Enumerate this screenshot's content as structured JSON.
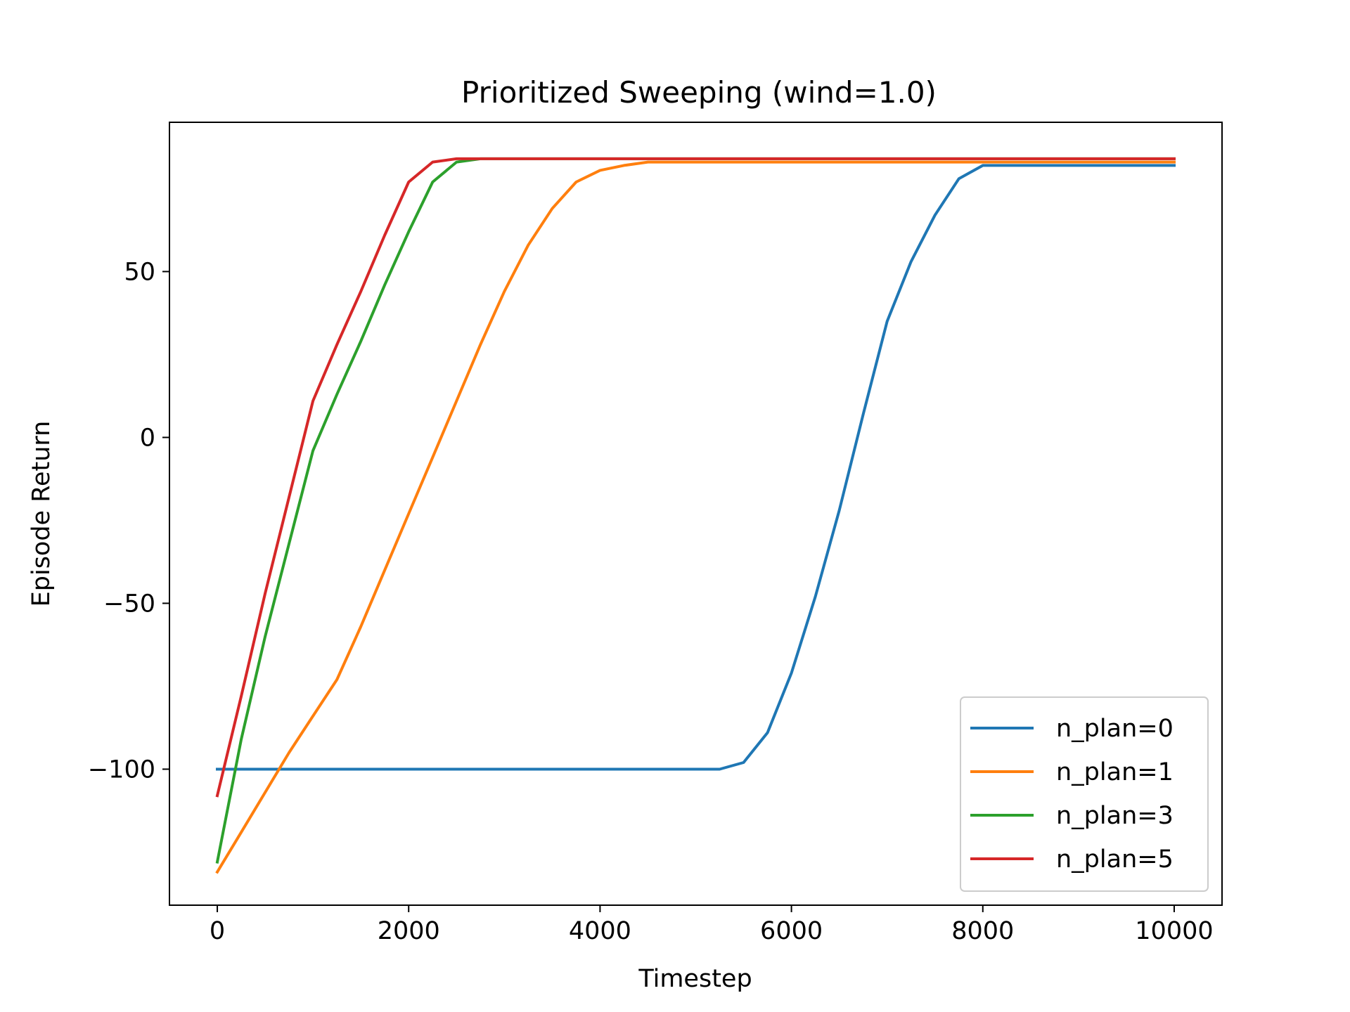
{
  "chart_data": {
    "type": "line",
    "title": "Prioritized Sweeping (wind=1.0)",
    "xlabel": "Timestep",
    "ylabel": "Episode Return",
    "xlim": [
      -500,
      10500
    ],
    "ylim": [
      -141,
      95
    ],
    "xticks": [
      0,
      2000,
      4000,
      6000,
      8000,
      10000
    ],
    "xtick_labels": [
      "0",
      "2000",
      "4000",
      "6000",
      "8000",
      "10000"
    ],
    "yticks": [
      -100,
      -50,
      0,
      50
    ],
    "ytick_labels": [
      "−100",
      "−50",
      "0",
      "50"
    ],
    "grid": false,
    "legend_position": "lower-right",
    "series": [
      {
        "name": "n_plan=0",
        "color": "#1f77b4",
        "x": [
          0,
          250,
          500,
          750,
          1000,
          1250,
          1500,
          1750,
          2000,
          2250,
          2500,
          2750,
          3000,
          3250,
          3500,
          3750,
          4000,
          4250,
          4500,
          4750,
          5000,
          5250,
          5500,
          5750,
          6000,
          6250,
          6500,
          6750,
          7000,
          7250,
          7500,
          7750,
          8000,
          8250,
          8500,
          8750,
          9000,
          9250,
          9500,
          9750,
          10000
        ],
        "y": [
          -100,
          -100,
          -100,
          -100,
          -100,
          -100,
          -100,
          -100,
          -100,
          -100,
          -100,
          -100,
          -100,
          -100,
          -100,
          -100,
          -100,
          -100,
          -100,
          -100,
          -100,
          -100,
          -98,
          -89,
          -71,
          -48,
          -22,
          7,
          35,
          53,
          67,
          78,
          82,
          82,
          82,
          82,
          82,
          82,
          82,
          82,
          82
        ]
      },
      {
        "name": "n_plan=1",
        "color": "#ff7f0e",
        "x": [
          0,
          250,
          500,
          750,
          1000,
          1250,
          1500,
          1750,
          2000,
          2250,
          2500,
          2750,
          3000,
          3250,
          3500,
          3750,
          4000,
          4250,
          4500,
          4750,
          5000,
          5500,
          6000,
          7000,
          8000,
          9000,
          10000
        ],
        "y": [
          -131,
          -119,
          -107,
          -95,
          -84,
          -73,
          -57,
          -40,
          -23,
          -6,
          11,
          28,
          44,
          58,
          69,
          77,
          80.5,
          82,
          83,
          83,
          83,
          83,
          83,
          83,
          83,
          83,
          83
        ]
      },
      {
        "name": "n_plan=3",
        "color": "#2ca02c",
        "x": [
          0,
          250,
          500,
          750,
          1000,
          1250,
          1500,
          1750,
          2000,
          2250,
          2500,
          2750,
          3000,
          3500,
          4000,
          5000,
          6000,
          7000,
          8000,
          9000,
          10000
        ],
        "y": [
          -128,
          -91,
          -60,
          -32,
          -4,
          13,
          29,
          46,
          62,
          77,
          83,
          84,
          84,
          84,
          84,
          84,
          84,
          84,
          84,
          84,
          84
        ]
      },
      {
        "name": "n_plan=5",
        "color": "#d62728",
        "x": [
          0,
          250,
          500,
          750,
          1000,
          1250,
          1500,
          1750,
          2000,
          2250,
          2500,
          2750,
          3000,
          3500,
          4000,
          5000,
          6000,
          7000,
          8000,
          9000,
          10000
        ],
        "y": [
          -108,
          -78,
          -47,
          -18,
          11,
          28,
          44,
          61,
          77,
          83,
          84,
          84,
          84,
          84,
          84,
          84,
          84,
          84,
          84,
          84,
          84
        ]
      }
    ]
  }
}
